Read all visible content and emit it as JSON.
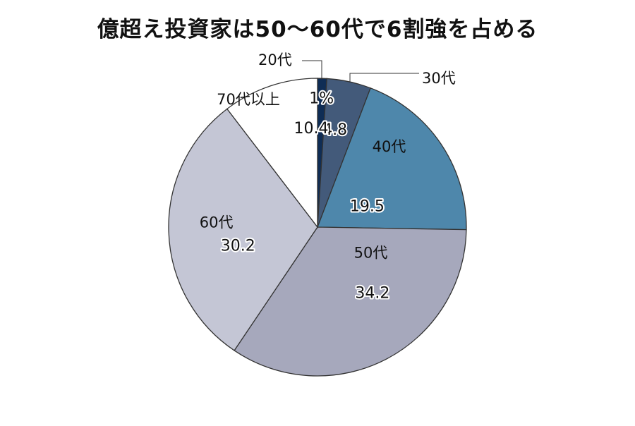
{
  "chart_data": {
    "type": "pie",
    "title": "億超え投資家は50〜60代で6割強を占める",
    "slices": [
      {
        "label": "20代",
        "value": 1,
        "value_label": "1%",
        "color": "#0f2d55"
      },
      {
        "label": "30代",
        "value": 4.8,
        "value_label": "4.8",
        "color": "#435a7a"
      },
      {
        "label": "40代",
        "value": 19.5,
        "value_label": "19.5",
        "color": "#4e87ab"
      },
      {
        "label": "50代",
        "value": 34.2,
        "value_label": "34.2",
        "color": "#a6a8bc"
      },
      {
        "label": "60代",
        "value": 30.2,
        "value_label": "30.2",
        "color": "#c4c6d5"
      },
      {
        "label": "70代以上",
        "value": 10.4,
        "value_label": "10.4",
        "color": "#ffffff"
      }
    ],
    "start": "top",
    "direction": "clockwise",
    "legend": "none"
  }
}
